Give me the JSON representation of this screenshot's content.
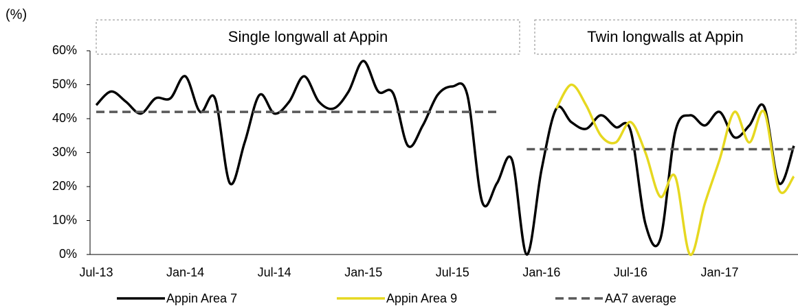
{
  "chart_data": {
    "type": "line",
    "unit_label": "(%)",
    "annotations": [
      "Single longwall at Appin",
      "Twin longwalls at Appin"
    ],
    "categories": [
      "Jul-13",
      null,
      null,
      null,
      null,
      null,
      "Jan-14",
      null,
      null,
      null,
      null,
      null,
      "Jul-14",
      null,
      null,
      null,
      null,
      null,
      "Jan-15",
      null,
      null,
      null,
      null,
      null,
      "Jul-15",
      null,
      null,
      null,
      null,
      null,
      "Jan-16",
      null,
      null,
      null,
      null,
      null,
      "Jul-16",
      null,
      null,
      null,
      null,
      null,
      "Jan-17",
      null,
      null,
      null,
      null,
      null
    ],
    "series": [
      {
        "name": "Appin Area 7",
        "color": "#000000",
        "dash": false,
        "values": [
          44,
          48,
          45,
          41.5,
          46,
          46,
          52.5,
          42,
          46,
          21,
          33,
          47,
          41.5,
          45,
          52.5,
          45,
          43,
          48,
          57,
          48,
          47.5,
          32,
          38,
          47,
          49.5,
          47,
          15.5,
          21,
          28,
          0,
          25,
          43,
          39,
          37,
          41,
          37.5,
          36.5,
          9,
          4.5,
          36,
          41,
          38,
          42,
          34.5,
          38,
          43.5,
          21,
          32
        ]
      },
      {
        "name": "Appin Area 9",
        "color": "#e6d820",
        "dash": false,
        "values": [
          null,
          null,
          null,
          null,
          null,
          null,
          null,
          null,
          null,
          null,
          null,
          null,
          null,
          null,
          null,
          null,
          null,
          null,
          null,
          null,
          null,
          null,
          null,
          null,
          null,
          null,
          null,
          null,
          null,
          null,
          null,
          43,
          50,
          44,
          35,
          33,
          39,
          30,
          17,
          23,
          0,
          15,
          28,
          42,
          33,
          42,
          19,
          23
        ]
      },
      {
        "name": "AA7 average",
        "color": "#595959",
        "dash": true,
        "values": [
          42,
          42,
          42,
          42,
          42,
          42,
          42,
          42,
          42,
          42,
          42,
          42,
          42,
          42,
          42,
          42,
          42,
          42,
          42,
          42,
          42,
          42,
          42,
          42,
          42,
          42,
          42,
          42,
          null,
          31,
          31,
          31,
          31,
          31,
          31,
          31,
          31,
          31,
          31,
          31,
          31,
          31,
          31,
          31,
          31,
          31,
          31,
          31
        ]
      }
    ],
    "ylim": [
      0,
      60
    ],
    "yticks": [
      {
        "value": 0,
        "label": "0%"
      },
      {
        "value": 10,
        "label": "10%"
      },
      {
        "value": 20,
        "label": "20%"
      },
      {
        "value": 30,
        "label": "30%"
      },
      {
        "value": 40,
        "label": "40%"
      },
      {
        "value": 50,
        "label": "50%"
      },
      {
        "value": 60,
        "label": "60%"
      }
    ],
    "grid": false,
    "legend": "bottom"
  }
}
